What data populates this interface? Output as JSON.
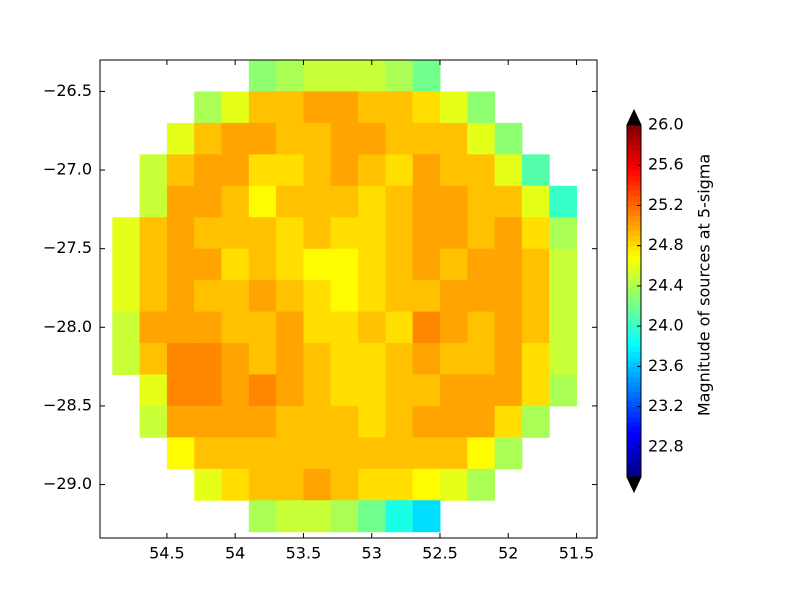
{
  "chart_data": {
    "type": "heatmap",
    "x": [
      54.8,
      54.6,
      54.4,
      54.2,
      54.0,
      53.8,
      53.6,
      53.4,
      53.2,
      53.0,
      52.8,
      52.6,
      52.4,
      52.2,
      52.0,
      51.8,
      51.6,
      51.4
    ],
    "y": [
      -26.4,
      -26.6,
      -26.8,
      -27.0,
      -27.2,
      -27.4,
      -27.6,
      -27.8,
      -28.0,
      -28.2,
      -28.4,
      -28.6,
      -28.8,
      -29.0,
      -29.2
    ],
    "values": [
      [
        null,
        null,
        null,
        null,
        null,
        24.3,
        24.4,
        24.5,
        24.5,
        24.5,
        24.4,
        24.2,
        null,
        null,
        null,
        null,
        null,
        null
      ],
      [
        null,
        null,
        null,
        24.4,
        24.6,
        24.9,
        24.9,
        25.0,
        25.0,
        24.9,
        24.9,
        24.8,
        24.6,
        24.3,
        null,
        null,
        null,
        null
      ],
      [
        null,
        null,
        24.6,
        24.9,
        25.0,
        25.0,
        24.9,
        24.9,
        25.0,
        25.0,
        24.9,
        24.9,
        24.9,
        24.6,
        24.3,
        null,
        null,
        null
      ],
      [
        null,
        24.5,
        24.9,
        25.0,
        25.0,
        24.8,
        24.8,
        24.9,
        25.0,
        24.9,
        24.8,
        25.0,
        24.9,
        24.9,
        24.6,
        24.1,
        null,
        null
      ],
      [
        null,
        24.5,
        25.0,
        25.0,
        24.9,
        24.7,
        24.9,
        24.9,
        24.9,
        24.8,
        24.9,
        25.0,
        25.0,
        24.9,
        24.9,
        24.6,
        24.0,
        null
      ],
      [
        24.6,
        24.9,
        25.0,
        24.9,
        24.9,
        24.9,
        24.8,
        24.9,
        24.8,
        24.8,
        24.9,
        25.0,
        25.0,
        24.9,
        25.0,
        24.8,
        24.4,
        null
      ],
      [
        24.6,
        24.9,
        25.0,
        25.0,
        24.8,
        24.9,
        24.8,
        24.7,
        24.7,
        24.8,
        24.9,
        25.0,
        24.9,
        25.0,
        25.0,
        24.9,
        24.5,
        null
      ],
      [
        24.6,
        24.9,
        25.0,
        24.9,
        24.9,
        25.0,
        24.9,
        24.8,
        24.7,
        24.8,
        24.9,
        24.9,
        25.0,
        25.0,
        25.0,
        24.9,
        24.5,
        null
      ],
      [
        24.5,
        25.0,
        25.0,
        25.0,
        24.9,
        24.9,
        25.0,
        24.8,
        24.8,
        24.9,
        24.8,
        25.1,
        25.0,
        24.9,
        25.0,
        24.9,
        24.5,
        null
      ],
      [
        24.5,
        24.9,
        25.1,
        25.1,
        25.0,
        24.9,
        25.0,
        24.9,
        24.8,
        24.8,
        24.9,
        25.0,
        24.9,
        24.9,
        25.0,
        24.8,
        24.5,
        null
      ],
      [
        null,
        24.6,
        25.1,
        25.1,
        25.0,
        25.1,
        25.0,
        24.9,
        24.8,
        24.8,
        24.9,
        24.9,
        25.0,
        25.0,
        25.0,
        24.8,
        24.4,
        null
      ],
      [
        null,
        24.5,
        25.0,
        25.0,
        25.0,
        25.0,
        24.9,
        24.9,
        24.9,
        24.8,
        24.9,
        25.0,
        25.0,
        25.0,
        24.8,
        24.4,
        null,
        null
      ],
      [
        null,
        null,
        24.7,
        24.9,
        24.9,
        24.9,
        24.9,
        24.9,
        24.9,
        24.9,
        24.9,
        24.9,
        24.9,
        24.7,
        24.4,
        null,
        null,
        null
      ],
      [
        null,
        null,
        null,
        24.6,
        24.8,
        24.9,
        24.9,
        25.0,
        24.9,
        24.8,
        24.8,
        24.7,
        24.6,
        24.4,
        null,
        null,
        null,
        null
      ],
      [
        null,
        null,
        null,
        null,
        null,
        24.4,
        24.5,
        24.5,
        24.4,
        24.2,
        23.9,
        23.7,
        null,
        null,
        null,
        null,
        null,
        null
      ]
    ],
    "xlim": [
      54.99,
      51.35
    ],
    "ylim": [
      -29.34,
      -26.3
    ],
    "xticks": [
      54.5,
      54.0,
      53.5,
      53.0,
      52.5,
      52.0,
      51.5
    ],
    "yticks": [
      {
        "value": -29.0,
        "label": "−29.0"
      },
      {
        "value": -28.5,
        "label": "−28.5"
      },
      {
        "value": -28.0,
        "label": "−28.0"
      },
      {
        "value": -27.5,
        "label": "−27.5"
      },
      {
        "value": -27.0,
        "label": "−27.0"
      },
      {
        "value": -26.5,
        "label": "−26.5"
      }
    ],
    "colormap": "jet",
    "colorbar": {
      "label": "Magnitude of sources at 5-sigma",
      "lim": [
        22.5,
        26.0
      ],
      "extend": "both",
      "ticks": [
        22.8,
        23.2,
        23.6,
        {
          "value": 24.0,
          "label": "24.0"
        },
        24.4,
        24.8,
        25.2,
        25.6,
        {
          "value": 26.0,
          "label": "26.0"
        }
      ]
    }
  }
}
